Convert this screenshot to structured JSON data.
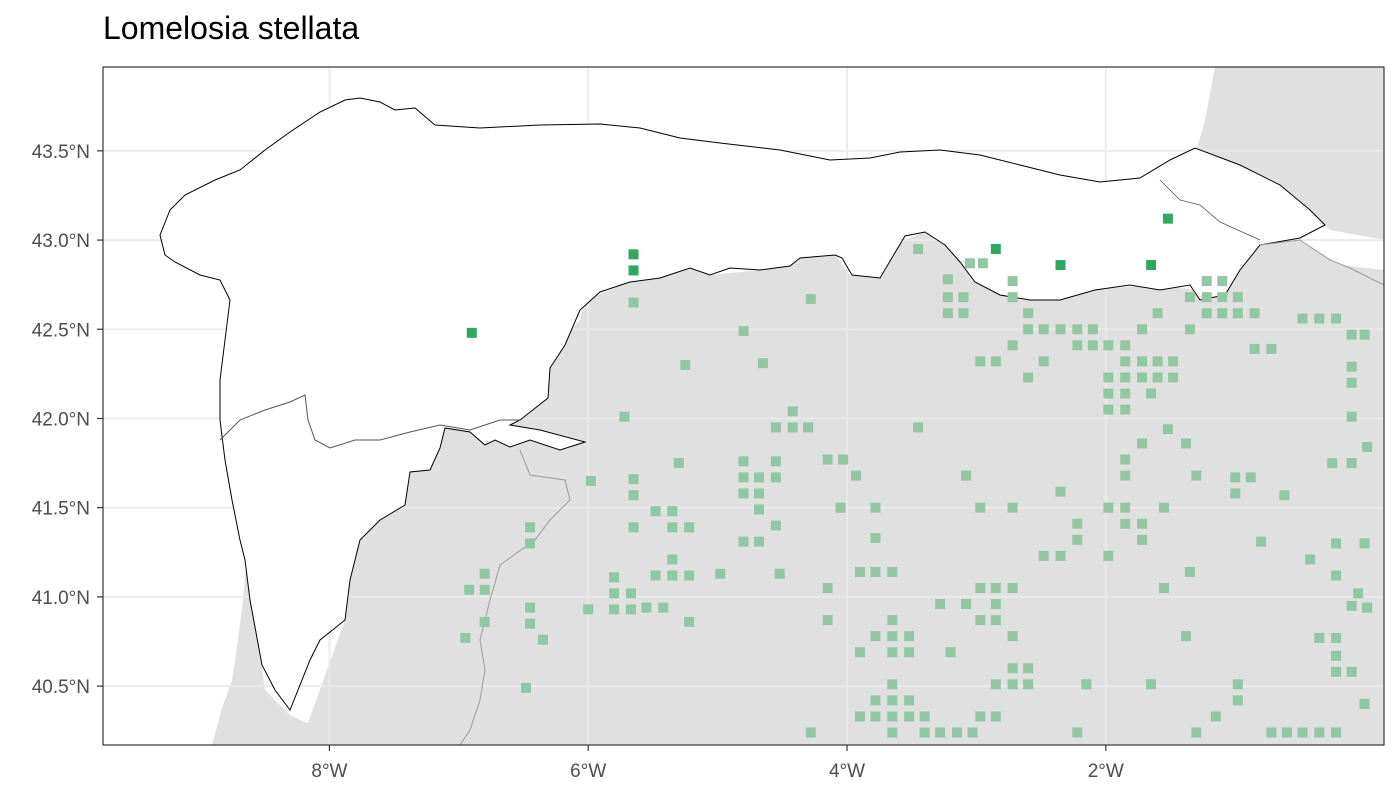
{
  "title": "Lomelosia stellata",
  "colors": {
    "land": "#e0e0e0",
    "region": "#ffffff",
    "grid": "#ebebeb",
    "record_strong": "#31a862",
    "record_faint": "#93c6a4",
    "border": "#000000",
    "frame": "#333333"
  },
  "x_ticks": [
    {
      "value": -8,
      "label": "8°W"
    },
    {
      "value": -6,
      "label": "6°W"
    },
    {
      "value": -4,
      "label": "4°W"
    },
    {
      "value": -2,
      "label": "2°W"
    }
  ],
  "y_ticks": [
    {
      "value": 43.5,
      "label": "43.5°N"
    },
    {
      "value": 43.0,
      "label": "43.0°N"
    },
    {
      "value": 42.5,
      "label": "42.5°N"
    },
    {
      "value": 42.0,
      "label": "42.0°N"
    },
    {
      "value": 41.5,
      "label": "41.5°N"
    },
    {
      "value": 41.0,
      "label": "41.0°N"
    },
    {
      "value": 40.5,
      "label": "40.5°N"
    }
  ],
  "extent": {
    "lon": [
      -9.75,
      0.15
    ],
    "lat": [
      40.17,
      43.97
    ]
  },
  "records_strong": [
    [
      -6.9,
      42.48
    ],
    [
      -5.65,
      42.92
    ],
    [
      -5.65,
      42.83
    ],
    [
      -2.85,
      42.95
    ],
    [
      -2.35,
      42.86
    ],
    [
      -1.65,
      42.86
    ],
    [
      -1.52,
      43.12
    ]
  ],
  "records_faint": [
    [
      -3.45,
      42.95
    ],
    [
      -3.05,
      42.87
    ],
    [
      -2.95,
      42.87
    ],
    [
      -2.72,
      42.77
    ],
    [
      -3.22,
      42.78
    ],
    [
      -3.22,
      42.68
    ],
    [
      -3.1,
      42.68
    ],
    [
      -2.72,
      42.68
    ],
    [
      -3.22,
      42.59
    ],
    [
      -3.1,
      42.59
    ],
    [
      -2.6,
      42.59
    ],
    [
      -2.6,
      42.5
    ],
    [
      -2.48,
      42.5
    ],
    [
      -2.35,
      42.5
    ],
    [
      -2.22,
      42.5
    ],
    [
      -2.1,
      42.5
    ],
    [
      -2.22,
      42.41
    ],
    [
      -2.1,
      42.41
    ],
    [
      -1.98,
      42.41
    ],
    [
      -1.85,
      42.41
    ],
    [
      -2.72,
      42.41
    ],
    [
      -2.97,
      42.32
    ],
    [
      -2.85,
      42.32
    ],
    [
      -2.48,
      42.32
    ],
    [
      -2.6,
      42.23
    ],
    [
      -1.98,
      42.23
    ],
    [
      -1.85,
      42.23
    ],
    [
      -1.72,
      42.23
    ],
    [
      -1.6,
      42.23
    ],
    [
      -1.48,
      42.23
    ],
    [
      -1.85,
      42.32
    ],
    [
      -1.72,
      42.32
    ],
    [
      -1.6,
      42.32
    ],
    [
      -1.48,
      42.32
    ],
    [
      -1.98,
      42.14
    ],
    [
      -1.85,
      42.14
    ],
    [
      -1.98,
      42.05
    ],
    [
      -1.85,
      42.05
    ],
    [
      -1.65,
      42.14
    ],
    [
      -1.72,
      42.5
    ],
    [
      -1.6,
      42.59
    ],
    [
      -1.35,
      42.5
    ],
    [
      -1.35,
      42.68
    ],
    [
      -1.22,
      42.77
    ],
    [
      -1.1,
      42.77
    ],
    [
      -1.22,
      42.68
    ],
    [
      -1.1,
      42.68
    ],
    [
      -0.98,
      42.68
    ],
    [
      -1.22,
      42.59
    ],
    [
      -1.1,
      42.59
    ],
    [
      -0.98,
      42.59
    ],
    [
      -0.85,
      42.59
    ],
    [
      -0.48,
      42.56
    ],
    [
      -0.35,
      42.56
    ],
    [
      -0.22,
      42.56
    ],
    [
      -0.1,
      42.47
    ],
    [
      0.0,
      42.47
    ],
    [
      -0.85,
      42.39
    ],
    [
      -0.72,
      42.39
    ],
    [
      -0.1,
      42.29
    ],
    [
      -0.1,
      42.2
    ],
    [
      -0.1,
      42.01
    ],
    [
      -0.1,
      41.75
    ],
    [
      0.02,
      41.84
    ],
    [
      -0.25,
      41.75
    ],
    [
      -5.65,
      42.65
    ],
    [
      -4.28,
      42.67
    ],
    [
      -4.8,
      42.49
    ],
    [
      -4.65,
      42.31
    ],
    [
      -5.25,
      42.3
    ],
    [
      -5.72,
      42.01
    ],
    [
      -4.42,
      42.04
    ],
    [
      -4.55,
      41.95
    ],
    [
      -4.42,
      41.95
    ],
    [
      -4.3,
      41.95
    ],
    [
      -3.45,
      41.95
    ],
    [
      -4.8,
      41.76
    ],
    [
      -4.55,
      41.76
    ],
    [
      -4.15,
      41.77
    ],
    [
      -4.03,
      41.77
    ],
    [
      -4.8,
      41.67
    ],
    [
      -4.68,
      41.67
    ],
    [
      -4.55,
      41.67
    ],
    [
      -4.8,
      41.58
    ],
    [
      -4.68,
      41.58
    ],
    [
      -4.68,
      41.49
    ],
    [
      -4.55,
      41.4
    ],
    [
      -4.8,
      41.31
    ],
    [
      -4.68,
      41.31
    ],
    [
      -5.3,
      41.75
    ],
    [
      -5.65,
      41.66
    ],
    [
      -5.65,
      41.57
    ],
    [
      -5.48,
      41.48
    ],
    [
      -5.35,
      41.48
    ],
    [
      -5.65,
      41.39
    ],
    [
      -5.35,
      41.39
    ],
    [
      -5.22,
      41.39
    ],
    [
      -5.35,
      41.21
    ],
    [
      -5.48,
      41.12
    ],
    [
      -5.35,
      41.12
    ],
    [
      -5.22,
      41.12
    ],
    [
      -4.98,
      41.13
    ],
    [
      -4.52,
      41.13
    ],
    [
      -5.98,
      41.65
    ],
    [
      -5.8,
      41.11
    ],
    [
      -5.8,
      41.02
    ],
    [
      -5.67,
      41.02
    ],
    [
      -5.8,
      40.93
    ],
    [
      -5.67,
      40.93
    ],
    [
      -5.55,
      40.94
    ],
    [
      -5.42,
      40.94
    ],
    [
      -5.22,
      40.86
    ],
    [
      -6.0,
      40.93
    ],
    [
      -3.93,
      41.68
    ],
    [
      -3.78,
      41.5
    ],
    [
      -4.05,
      41.5
    ],
    [
      -3.78,
      41.33
    ],
    [
      -3.9,
      41.14
    ],
    [
      -3.78,
      41.14
    ],
    [
      -3.65,
      41.14
    ],
    [
      -4.15,
      41.05
    ],
    [
      -4.15,
      40.87
    ],
    [
      -3.65,
      40.87
    ],
    [
      -3.78,
      40.78
    ],
    [
      -3.65,
      40.78
    ],
    [
      -3.52,
      40.78
    ],
    [
      -3.9,
      40.69
    ],
    [
      -3.65,
      40.69
    ],
    [
      -3.52,
      40.69
    ],
    [
      -3.28,
      40.96
    ],
    [
      -3.08,
      41.68
    ],
    [
      -2.97,
      41.5
    ],
    [
      -2.72,
      41.5
    ],
    [
      -3.08,
      40.96
    ],
    [
      -2.97,
      41.05
    ],
    [
      -2.85,
      41.05
    ],
    [
      -2.72,
      41.05
    ],
    [
      -2.85,
      40.96
    ],
    [
      -2.97,
      40.87
    ],
    [
      -2.85,
      40.87
    ],
    [
      -2.72,
      40.78
    ],
    [
      -3.2,
      40.69
    ],
    [
      -2.72,
      40.6
    ],
    [
      -2.6,
      40.6
    ],
    [
      -2.85,
      40.51
    ],
    [
      -2.72,
      40.51
    ],
    [
      -2.6,
      40.51
    ],
    [
      -3.65,
      40.51
    ],
    [
      -3.78,
      40.42
    ],
    [
      -3.65,
      40.42
    ],
    [
      -3.52,
      40.42
    ],
    [
      -3.9,
      40.33
    ],
    [
      -3.78,
      40.33
    ],
    [
      -3.65,
      40.33
    ],
    [
      -3.52,
      40.33
    ],
    [
      -3.4,
      40.33
    ],
    [
      -2.97,
      40.33
    ],
    [
      -2.85,
      40.33
    ],
    [
      -3.65,
      40.24
    ],
    [
      -3.4,
      40.24
    ],
    [
      -3.28,
      40.24
    ],
    [
      -3.15,
      40.24
    ],
    [
      -3.03,
      40.24
    ],
    [
      -4.28,
      40.24
    ],
    [
      -2.35,
      41.59
    ],
    [
      -2.22,
      41.41
    ],
    [
      -2.22,
      41.32
    ],
    [
      -2.48,
      41.23
    ],
    [
      -2.35,
      41.23
    ],
    [
      -1.98,
      41.5
    ],
    [
      -1.85,
      41.5
    ],
    [
      -1.98,
      41.23
    ],
    [
      -1.85,
      41.41
    ],
    [
      -1.72,
      41.41
    ],
    [
      -1.72,
      41.32
    ],
    [
      -1.85,
      41.68
    ],
    [
      -1.85,
      41.77
    ],
    [
      -1.72,
      41.86
    ],
    [
      -1.52,
      41.94
    ],
    [
      -1.38,
      41.86
    ],
    [
      -1.55,
      41.5
    ],
    [
      -1.35,
      41.14
    ],
    [
      -1.55,
      41.05
    ],
    [
      -1.38,
      40.78
    ],
    [
      -1.65,
      40.51
    ],
    [
      -2.15,
      40.51
    ],
    [
      -2.22,
      40.24
    ],
    [
      -1.3,
      40.24
    ],
    [
      -1.15,
      40.33
    ],
    [
      -0.98,
      40.42
    ],
    [
      -0.98,
      40.51
    ],
    [
      -1.3,
      41.68
    ],
    [
      -1.0,
      41.67
    ],
    [
      -0.88,
      41.67
    ],
    [
      -1.0,
      41.58
    ],
    [
      -0.62,
      41.57
    ],
    [
      -0.8,
      41.31
    ],
    [
      -0.42,
      41.21
    ],
    [
      -0.22,
      41.3
    ],
    [
      -0.22,
      41.12
    ],
    [
      0.0,
      41.3
    ],
    [
      -0.05,
      41.02
    ],
    [
      0.02,
      40.94
    ],
    [
      -0.1,
      40.95
    ],
    [
      -0.35,
      40.77
    ],
    [
      -0.22,
      40.77
    ],
    [
      -0.22,
      40.67
    ],
    [
      -0.22,
      40.58
    ],
    [
      -0.1,
      40.58
    ],
    [
      0.0,
      40.4
    ],
    [
      -0.72,
      40.24
    ],
    [
      -0.6,
      40.24
    ],
    [
      -0.48,
      40.24
    ],
    [
      -0.35,
      40.24
    ],
    [
      -0.22,
      40.24
    ],
    [
      -6.45,
      41.39
    ],
    [
      -6.45,
      41.3
    ],
    [
      -6.8,
      41.13
    ],
    [
      -6.92,
      41.04
    ],
    [
      -6.8,
      41.04
    ],
    [
      -6.45,
      40.94
    ],
    [
      -6.45,
      40.85
    ],
    [
      -6.8,
      40.86
    ],
    [
      -6.95,
      40.77
    ],
    [
      -6.35,
      40.76
    ],
    [
      -6.48,
      40.49
    ]
  ]
}
